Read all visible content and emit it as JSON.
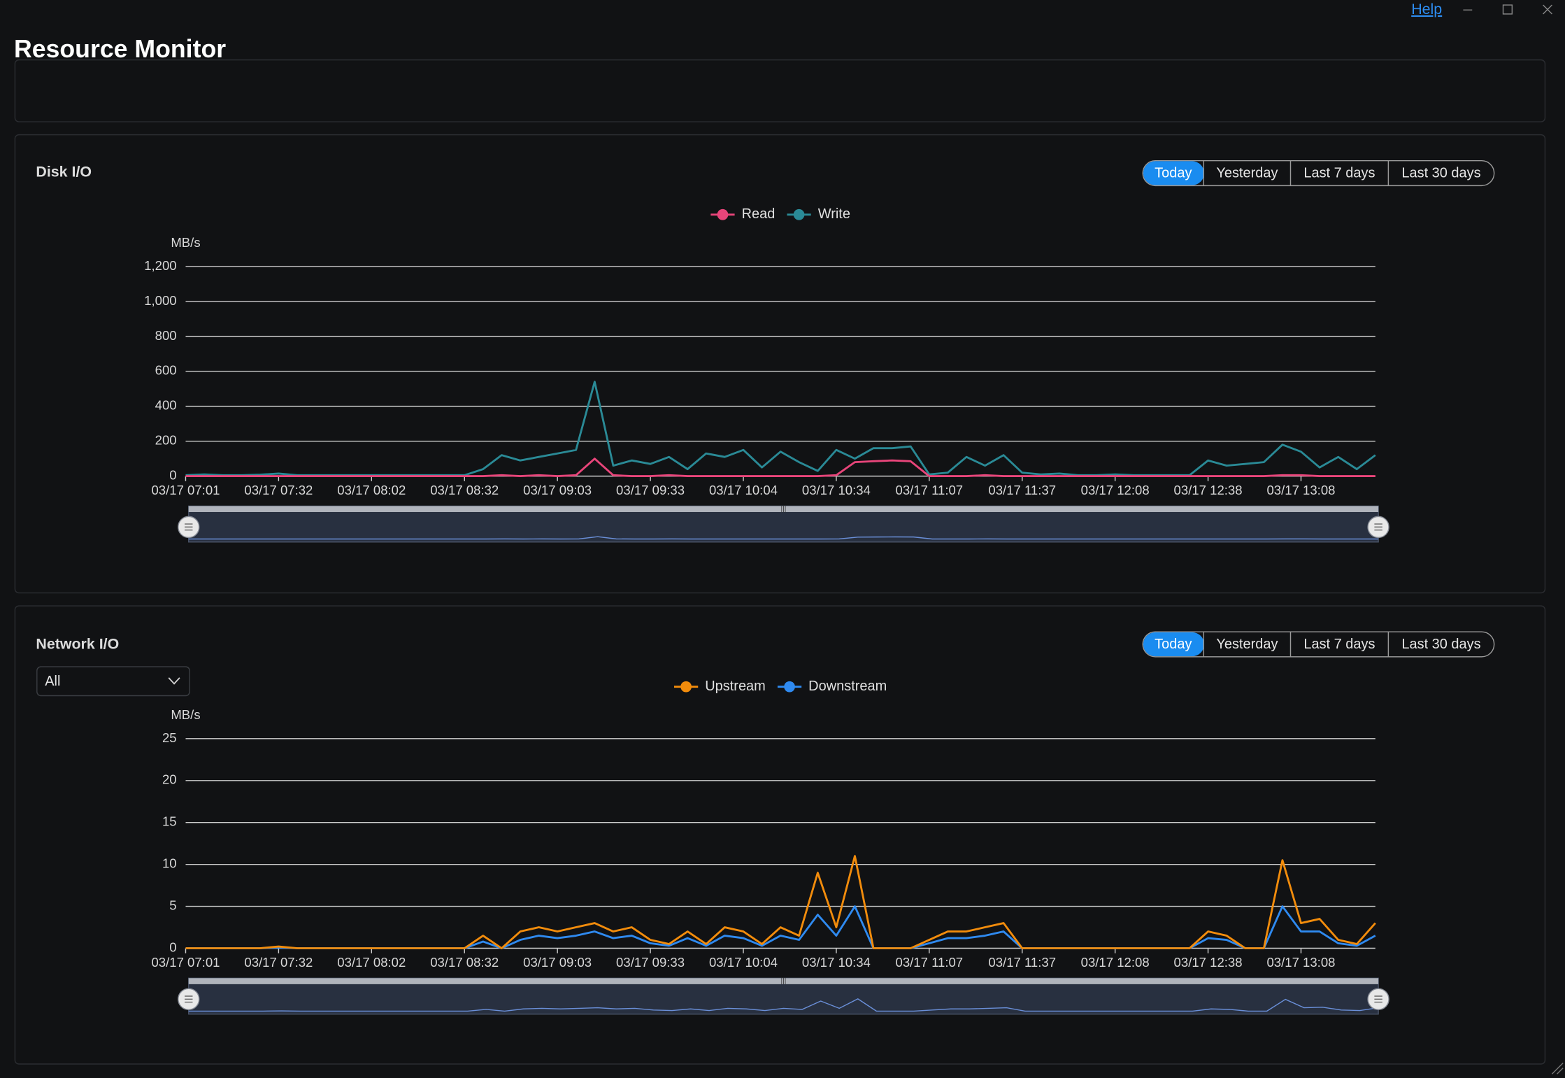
{
  "window": {
    "help": "Help"
  },
  "header": {
    "title": "Resource Monitor"
  },
  "panels": [
    {
      "range_buttons": [
        "Today",
        "Yesterday",
        "Last 7 days",
        "Last 30 days"
      ]
    },
    {
      "range_buttons": [
        "Today",
        "Yesterday",
        "Last 7 days",
        "Last 30 days"
      ],
      "filter": "All"
    }
  ],
  "chart_data": [
    {
      "type": "line",
      "title": "Disk I/O",
      "y_label": "MB/s",
      "categories": [
        "03/17 07:01",
        null,
        null,
        null,
        null,
        "03/17 07:32",
        null,
        null,
        null,
        null,
        "03/17 08:02",
        null,
        null,
        null,
        null,
        "03/17 08:32",
        null,
        null,
        null,
        null,
        "03/17 09:03",
        null,
        null,
        null,
        null,
        "03/17 09:33",
        null,
        null,
        null,
        null,
        "03/17 10:04",
        null,
        null,
        null,
        null,
        "03/17 10:34",
        null,
        null,
        null,
        null,
        "03/17 11:07",
        null,
        null,
        null,
        null,
        "03/17 11:37",
        null,
        null,
        null,
        null,
        "03/17 12:08",
        null,
        null,
        null,
        null,
        "03/17 12:38",
        null,
        null,
        null,
        null,
        "03/17 13:08",
        null,
        null,
        null,
        null
      ],
      "series": [
        {
          "name": "Read",
          "color": "#e8457a",
          "values": [
            0,
            0,
            0,
            0,
            0,
            0,
            0,
            0,
            0,
            0,
            0,
            0,
            0,
            0,
            0,
            0,
            0,
            5,
            0,
            5,
            0,
            5,
            100,
            5,
            0,
            0,
            5,
            0,
            0,
            0,
            0,
            0,
            0,
            0,
            0,
            5,
            80,
            85,
            90,
            85,
            0,
            0,
            0,
            5,
            0,
            0,
            0,
            0,
            0,
            0,
            0,
            0,
            0,
            0,
            0,
            0,
            0,
            0,
            0,
            5,
            5,
            0,
            0,
            0,
            0
          ]
        },
        {
          "name": "Write",
          "color": "#2a8a96",
          "values": [
            5,
            10,
            5,
            5,
            8,
            15,
            5,
            5,
            5,
            5,
            5,
            5,
            5,
            5,
            5,
            5,
            40,
            120,
            90,
            110,
            130,
            150,
            540,
            60,
            90,
            70,
            110,
            40,
            130,
            110,
            150,
            50,
            140,
            80,
            30,
            150,
            100,
            160,
            160,
            170,
            10,
            20,
            110,
            60,
            120,
            20,
            10,
            15,
            5,
            5,
            10,
            5,
            5,
            5,
            5,
            90,
            60,
            70,
            80,
            180,
            140,
            50,
            110,
            40,
            120
          ]
        }
      ],
      "ylim": [
        0,
        1200
      ],
      "yticks": [
        0,
        200,
        400,
        600,
        800,
        {
          "value": 1000,
          "label": "1,000"
        },
        {
          "value": 1200,
          "label": "1,200"
        }
      ],
      "grid": true
    },
    {
      "type": "line",
      "title": "Network I/O",
      "y_label": "MB/s",
      "categories": [
        "03/17 07:01",
        null,
        null,
        null,
        null,
        "03/17 07:32",
        null,
        null,
        null,
        null,
        "03/17 08:02",
        null,
        null,
        null,
        null,
        "03/17 08:32",
        null,
        null,
        null,
        null,
        "03/17 09:03",
        null,
        null,
        null,
        null,
        "03/17 09:33",
        null,
        null,
        null,
        null,
        "03/17 10:04",
        null,
        null,
        null,
        null,
        "03/17 10:34",
        null,
        null,
        null,
        null,
        "03/17 11:07",
        null,
        null,
        null,
        null,
        "03/17 11:37",
        null,
        null,
        null,
        null,
        "03/17 12:08",
        null,
        null,
        null,
        null,
        "03/17 12:38",
        null,
        null,
        null,
        null,
        "03/17 13:08",
        null,
        null,
        null,
        null
      ],
      "series": [
        {
          "name": "Upstream",
          "color": "#f28c0c",
          "values": [
            0,
            0,
            0,
            0,
            0,
            0.2,
            0,
            0,
            0,
            0,
            0,
            0,
            0,
            0,
            0,
            0,
            1.5,
            0,
            2,
            2.5,
            2,
            2.5,
            3,
            2,
            2.5,
            1,
            0.5,
            2,
            0.5,
            2.5,
            2,
            0.5,
            2.5,
            1.5,
            9,
            2.5,
            11,
            0,
            0,
            0,
            1,
            2,
            2,
            2.5,
            3,
            0,
            0,
            0,
            0,
            0,
            0,
            0,
            0,
            0,
            0,
            2,
            1.5,
            0,
            0,
            10.5,
            3,
            3.5,
            1,
            0.5,
            3
          ]
        },
        {
          "name": "Downstream",
          "color": "#2f8af0",
          "values": [
            0,
            0,
            0,
            0,
            0,
            0.1,
            0,
            0,
            0,
            0,
            0,
            0,
            0,
            0,
            0,
            0,
            0.8,
            0,
            1,
            1.5,
            1.2,
            1.5,
            2,
            1.2,
            1.5,
            0.6,
            0.3,
            1.2,
            0.3,
            1.5,
            1.2,
            0.3,
            1.5,
            1,
            4,
            1.5,
            5,
            0,
            0,
            0,
            0.6,
            1.2,
            1.2,
            1.5,
            2,
            0,
            0,
            0,
            0,
            0,
            0,
            0,
            0,
            0,
            0,
            1.2,
            1,
            0,
            0,
            5,
            2,
            2,
            0.6,
            0.3,
            1.5
          ]
        }
      ],
      "ylim": [
        0,
        25
      ],
      "yticks": [
        0,
        5,
        10,
        15,
        20,
        25
      ],
      "grid": true
    }
  ]
}
